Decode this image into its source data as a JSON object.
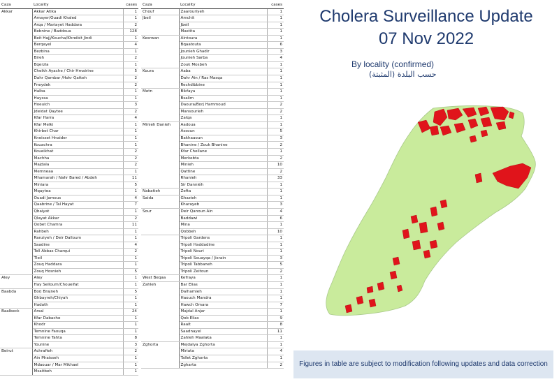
{
  "title_line1": "Cholera Surveillance Update",
  "title_line2": "07 Nov 2022",
  "subtitle_en": "By locality (confirmed)",
  "subtitle_ar": "حسب البلدة (المثبتة)",
  "note": "Figures in table are subject to modification following updates and data correction",
  "colors": {
    "map_land": "#c9eb9c",
    "map_case": "#e0141b",
    "title": "#1f3a6e",
    "note_bg": "#dde6f1"
  },
  "chart_data": {
    "type": "table",
    "columns": [
      "Caza",
      "Locality",
      "cases"
    ],
    "groups_left": [
      {
        "caza": "Akkar",
        "rows": [
          [
            "Akkar Atika",
            1
          ],
          [
            "Amayer/Ouadi Khaled",
            1
          ],
          [
            "Arqa / Mariayet Haddara",
            2
          ],
          [
            "Bebnine / Baddoua",
            128
          ],
          [
            "Beit Hajj/Koucha/Khreibit Jindi",
            1
          ],
          [
            "Berqayel",
            4
          ],
          [
            "Bezbina",
            1
          ],
          [
            "Bireh",
            2
          ],
          [
            "Bqerzla",
            1
          ],
          [
            "Cheikh Ayache / Chir Hmairine",
            5
          ],
          [
            "Dahr Qambar /Hokr Qatteh",
            2
          ],
          [
            "Fneydek",
            2
          ],
          [
            "Halba",
            1
          ],
          [
            "Hayssa",
            1
          ],
          [
            "Hoeuich",
            3
          ],
          [
            "Jdeidat Qaytee",
            2
          ],
          [
            "Kfar Harra",
            4
          ],
          [
            "Kfar Melki",
            1
          ],
          [
            "Khirbet Char",
            1
          ],
          [
            "Kneisset Hnaider",
            1
          ],
          [
            "Kouachra",
            1
          ],
          [
            "Koueikhat",
            2
          ],
          [
            "Machha",
            2
          ],
          [
            "Majdala",
            2
          ],
          [
            "Memneaa",
            1
          ],
          [
            "Mhamarah / Nahr Bared / Abdeh",
            11
          ],
          [
            "Miniara",
            5
          ],
          [
            "Mqaytea",
            1
          ],
          [
            "Ouadi Jamous",
            4
          ],
          [
            "Qaabrine / Tal Hayat",
            7
          ],
          [
            "Qbaiyat",
            1
          ],
          [
            "Qlayat Akkar",
            2
          ],
          [
            "Qobet Chamra",
            11
          ],
          [
            "Rahbeh",
            1
          ],
          [
            "Ranziyeh / Deir Dalloum",
            1
          ],
          [
            "Saadine",
            4
          ],
          [
            "Tell Abbas Charqui",
            2
          ],
          [
            "Tleil",
            1
          ],
          [
            "Zouq Haddara",
            1
          ],
          [
            "Zouq Hosnieh",
            5
          ]
        ]
      },
      {
        "caza": "Aley",
        "rows": [
          [
            "Aley",
            1
          ],
          [
            "Hay Selloum/Choueifat",
            1
          ]
        ]
      },
      {
        "caza": "Baabda",
        "rows": [
          [
            "Borj Brajneh",
            5
          ],
          [
            "Ghbayreh/Chiyah",
            1
          ],
          [
            "Hadath",
            1
          ]
        ]
      },
      {
        "caza": "Baalbeck",
        "rows": [
          [
            "Arsal",
            24
          ],
          [
            "Kfar Dabache",
            1
          ],
          [
            "Khodr",
            1
          ],
          [
            "Temnine Faouqa",
            1
          ],
          [
            "Temnine Tahta",
            8
          ],
          [
            "Younine",
            3
          ]
        ]
      },
      {
        "caza": "Beirut",
        "rows": [
          [
            "Achrafieh",
            2
          ],
          [
            "Ain Mraisseh",
            1
          ],
          [
            "Mdaouar / Mar Mikhael",
            1
          ],
          [
            "Msaitbeh",
            1
          ]
        ]
      }
    ],
    "groups_right": [
      {
        "caza": "Chouf",
        "rows": [
          [
            "Zaarouriyeh",
            1
          ]
        ]
      },
      {
        "caza": "Jbeil",
        "rows": [
          [
            "Amchit",
            1
          ],
          [
            "Jbeil",
            1
          ],
          [
            "Mastita",
            1
          ]
        ]
      },
      {
        "caza": "Kesrwan",
        "rows": [
          [
            "Aintoura",
            1
          ],
          [
            "Bqaatouta",
            6
          ],
          [
            "Jounieh Ghadir",
            3
          ],
          [
            "Jounieh Sarba",
            4
          ],
          [
            "Zouk Mosbeh",
            1
          ]
        ]
      },
      {
        "caza": "Koura",
        "rows": [
          [
            "Aaba",
            1
          ],
          [
            "Dahr Ain / Ras Masqa",
            1
          ],
          [
            "Rechdibbine",
            1
          ]
        ]
      },
      {
        "caza": "Metn",
        "rows": [
          [
            "Bikfaya",
            1
          ],
          [
            "Bsalim",
            1
          ],
          [
            "Daoura/Borj Hammoud",
            2
          ],
          [
            "Mansourieh",
            2
          ],
          [
            "Zalqa",
            1
          ]
        ]
      },
      {
        "caza": "Minieh Danieh",
        "rows": [
          [
            "Aadoua",
            1
          ],
          [
            "Assoun",
            5
          ],
          [
            "Bakhaaoun",
            3
          ],
          [
            "Bhanine / Zouk Bhanine",
            2
          ],
          [
            "Kfar Chellane",
            1
          ],
          [
            "Merkebta",
            2
          ],
          [
            "Minieh",
            10
          ],
          [
            "Qattine",
            2
          ],
          [
            "Rhanieh",
            33
          ],
          [
            "Sir Danniéh",
            1
          ]
        ]
      },
      {
        "caza": "Nabatieh",
        "rows": [
          [
            "Zefta",
            1
          ]
        ]
      },
      {
        "caza": "Saida",
        "rows": [
          [
            "Ghazieh",
            1
          ],
          [
            "Kharayeb",
            3
          ]
        ]
      },
      {
        "caza": "Sour",
        "rows": [
          [
            "Deir Qanoun Ain",
            4
          ],
          [
            "Baddawi",
            6
          ],
          [
            "Mina",
            1
          ],
          [
            "Qobbeh",
            10
          ]
        ]
      },
      {
        "caza": "",
        "rows": [
          [
            "Tripoli Gardens",
            1
          ],
          [
            "Tripoli Haddadine",
            1
          ],
          [
            "Tripoli Nouri",
            1
          ],
          [
            "Tripoli Souayqa / Jisrain",
            3
          ],
          [
            "Tripoli Tabbaneh",
            5
          ],
          [
            "Tripoli Zeitoun",
            2
          ]
        ]
      },
      {
        "caza": "West Beqaa",
        "rows": [
          [
            "Kefraya",
            1
          ]
        ]
      },
      {
        "caza": "Zahleh",
        "rows": [
          [
            "Bar Elias",
            1
          ],
          [
            "Dalhamieh",
            1
          ],
          [
            "Haouch Mandra",
            1
          ],
          [
            "Hawch Omara",
            7
          ],
          [
            "Majdal Anjar",
            1
          ],
          [
            "Qob Elias",
            9
          ],
          [
            "Raait",
            8
          ],
          [
            "Saadnayel",
            11
          ],
          [
            "Zahleh Maalaka",
            1
          ]
        ]
      },
      {
        "caza": "Zghorta",
        "rows": [
          [
            "Mejdalya Zghorta",
            1
          ],
          [
            "Miriata",
            4
          ],
          [
            "Tallet Zghorta",
            1
          ],
          [
            "Zgharta",
            2
          ]
        ]
      }
    ]
  }
}
